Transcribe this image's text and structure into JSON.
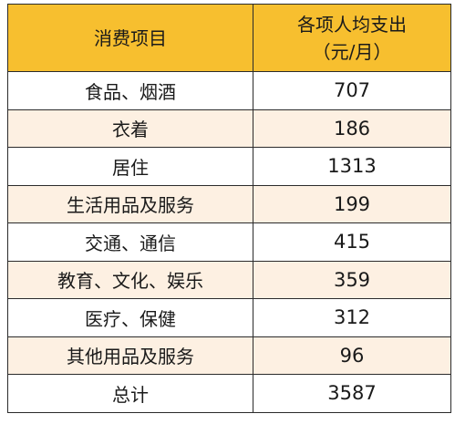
{
  "header": {
    "item": "消费项目",
    "amount_line1": "各项人均支出",
    "amount_line2": "（元/月）"
  },
  "rows": [
    {
      "item": "食品、烟酒",
      "value": "707"
    },
    {
      "item": "衣着",
      "value": "186"
    },
    {
      "item": "居住",
      "value": "1313"
    },
    {
      "item": "生活用品及服务",
      "value": "199"
    },
    {
      "item": "交通、通信",
      "value": "415"
    },
    {
      "item": "教育、文化、娱乐",
      "value": "359"
    },
    {
      "item": "医疗、保健",
      "value": "312"
    },
    {
      "item": "其他用品及服务",
      "value": "96"
    },
    {
      "item": "总计",
      "value": "3587"
    }
  ],
  "colors": {
    "header_bg": "#f7bf2f",
    "stripe_bg": "#fdf0e2",
    "border": "#2b2b2b"
  }
}
